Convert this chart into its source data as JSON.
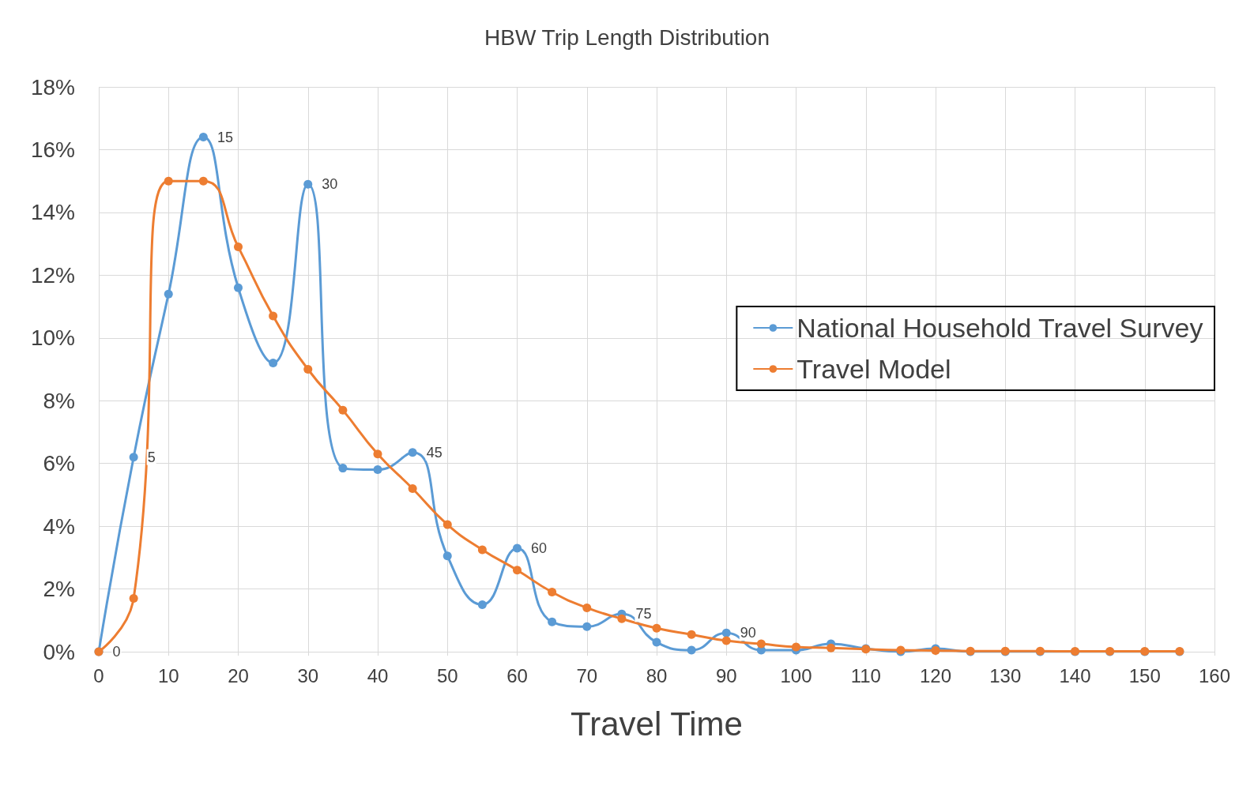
{
  "chart_data": {
    "type": "line",
    "title": "HBW Trip Length Distribution",
    "xlabel": "Travel Time",
    "x": [
      0,
      5,
      10,
      15,
      20,
      25,
      30,
      35,
      40,
      45,
      50,
      55,
      60,
      65,
      70,
      75,
      80,
      85,
      90,
      95,
      100,
      105,
      110,
      115,
      120,
      125,
      130,
      135,
      140,
      145,
      150,
      155
    ],
    "series": [
      {
        "name": "National Household Travel Survey",
        "color": "#5b9bd5",
        "values": [
          0,
          6.2,
          11.4,
          16.4,
          11.6,
          9.2,
          14.9,
          5.85,
          5.8,
          6.35,
          3.05,
          1.5,
          3.3,
          0.95,
          0.8,
          1.2,
          0.3,
          0.05,
          0.6,
          0.05,
          0.05,
          0.25,
          0.1,
          0,
          0.1,
          0,
          0,
          0,
          0,
          0,
          0,
          0
        ]
      },
      {
        "name": "Travel Model",
        "color": "#ed7d31",
        "values": [
          0,
          1.7,
          15,
          15,
          12.9,
          10.7,
          9.0,
          7.7,
          6.3,
          5.2,
          4.05,
          3.25,
          2.6,
          1.9,
          1.4,
          1.05,
          0.75,
          0.55,
          0.35,
          0.25,
          0.15,
          0.12,
          0.08,
          0.05,
          0.04,
          0.02,
          0.02,
          0.02,
          0.01,
          0.01,
          0.01,
          0.01
        ]
      }
    ],
    "annotations": [
      {
        "text": "0",
        "x": 0,
        "y": 0
      },
      {
        "text": "5",
        "x": 5,
        "y": 6.2
      },
      {
        "text": "15",
        "x": 15,
        "y": 16.4
      },
      {
        "text": "30",
        "x": 30,
        "y": 14.9
      },
      {
        "text": "45",
        "x": 45,
        "y": 6.35
      },
      {
        "text": "60",
        "x": 60,
        "y": 3.3
      },
      {
        "text": "75",
        "x": 75,
        "y": 1.2
      },
      {
        "text": "90",
        "x": 90,
        "y": 0.6
      }
    ],
    "xlim": [
      0,
      160
    ],
    "xticks": [
      0,
      10,
      20,
      30,
      40,
      50,
      60,
      70,
      80,
      90,
      100,
      110,
      120,
      130,
      140,
      150,
      160
    ],
    "ylim": [
      0,
      18
    ],
    "yticks": [
      {
        "value": 0,
        "label": "0%"
      },
      {
        "value": 2,
        "label": "2%"
      },
      {
        "value": 4,
        "label": "4%"
      },
      {
        "value": 6,
        "label": "6%"
      },
      {
        "value": 8,
        "label": "8%"
      },
      {
        "value": 10,
        "label": "10%"
      },
      {
        "value": 12,
        "label": "12%"
      },
      {
        "value": 14,
        "label": "14%"
      },
      {
        "value": 16,
        "label": "16%"
      },
      {
        "value": 18,
        "label": "18%"
      }
    ],
    "grid": true,
    "legend": "right",
    "marker": "circle",
    "line_style": "solid"
  }
}
